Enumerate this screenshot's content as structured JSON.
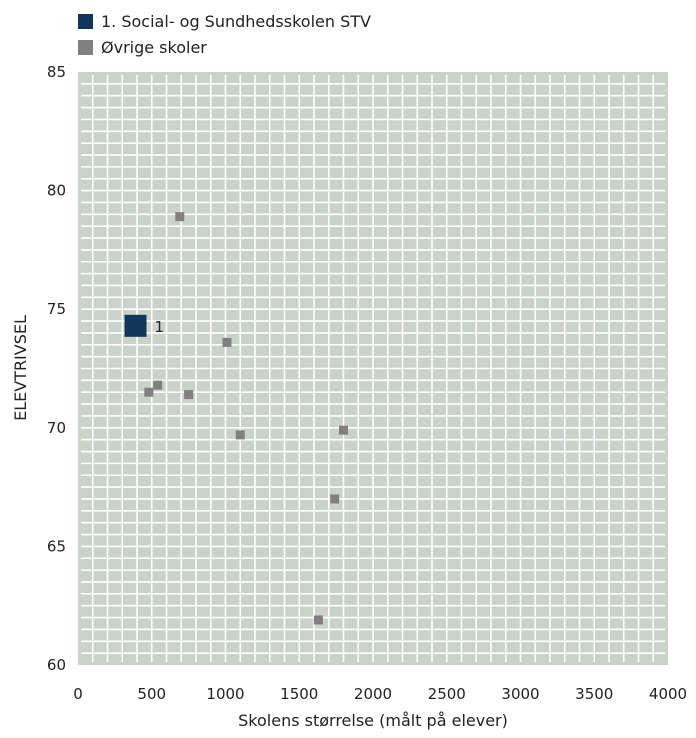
{
  "chart_data": {
    "type": "scatter",
    "xlabel": "Skolens størrelse (målt på elever)",
    "ylabel": "ELEVTRIVSEL",
    "xlim": [
      0,
      4000
    ],
    "ylim": [
      60,
      85
    ],
    "x_ticks": [
      0,
      500,
      1000,
      1500,
      2000,
      2500,
      3000,
      3500,
      4000
    ],
    "y_ticks": [
      60,
      65,
      70,
      75,
      80,
      85
    ],
    "grid": true,
    "colors": {
      "highlight": "#12365b",
      "others": "#808080",
      "grid_bg": "#c9d3ca",
      "grid_line": "#ffffff"
    },
    "series": [
      {
        "name": "1. Social- og Sundhedsskolen STV",
        "points": [
          {
            "x": 390,
            "y": 74.3,
            "label": "1"
          }
        ]
      },
      {
        "name": "Øvrige skoler",
        "points": [
          {
            "x": 690,
            "y": 78.9
          },
          {
            "x": 1010,
            "y": 73.6
          },
          {
            "x": 540,
            "y": 71.8
          },
          {
            "x": 480,
            "y": 71.5
          },
          {
            "x": 750,
            "y": 71.4
          },
          {
            "x": 1100,
            "y": 69.7
          },
          {
            "x": 1800,
            "y": 69.9
          },
          {
            "x": 1740,
            "y": 67.0
          },
          {
            "x": 1630,
            "y": 61.9
          }
        ]
      }
    ]
  }
}
